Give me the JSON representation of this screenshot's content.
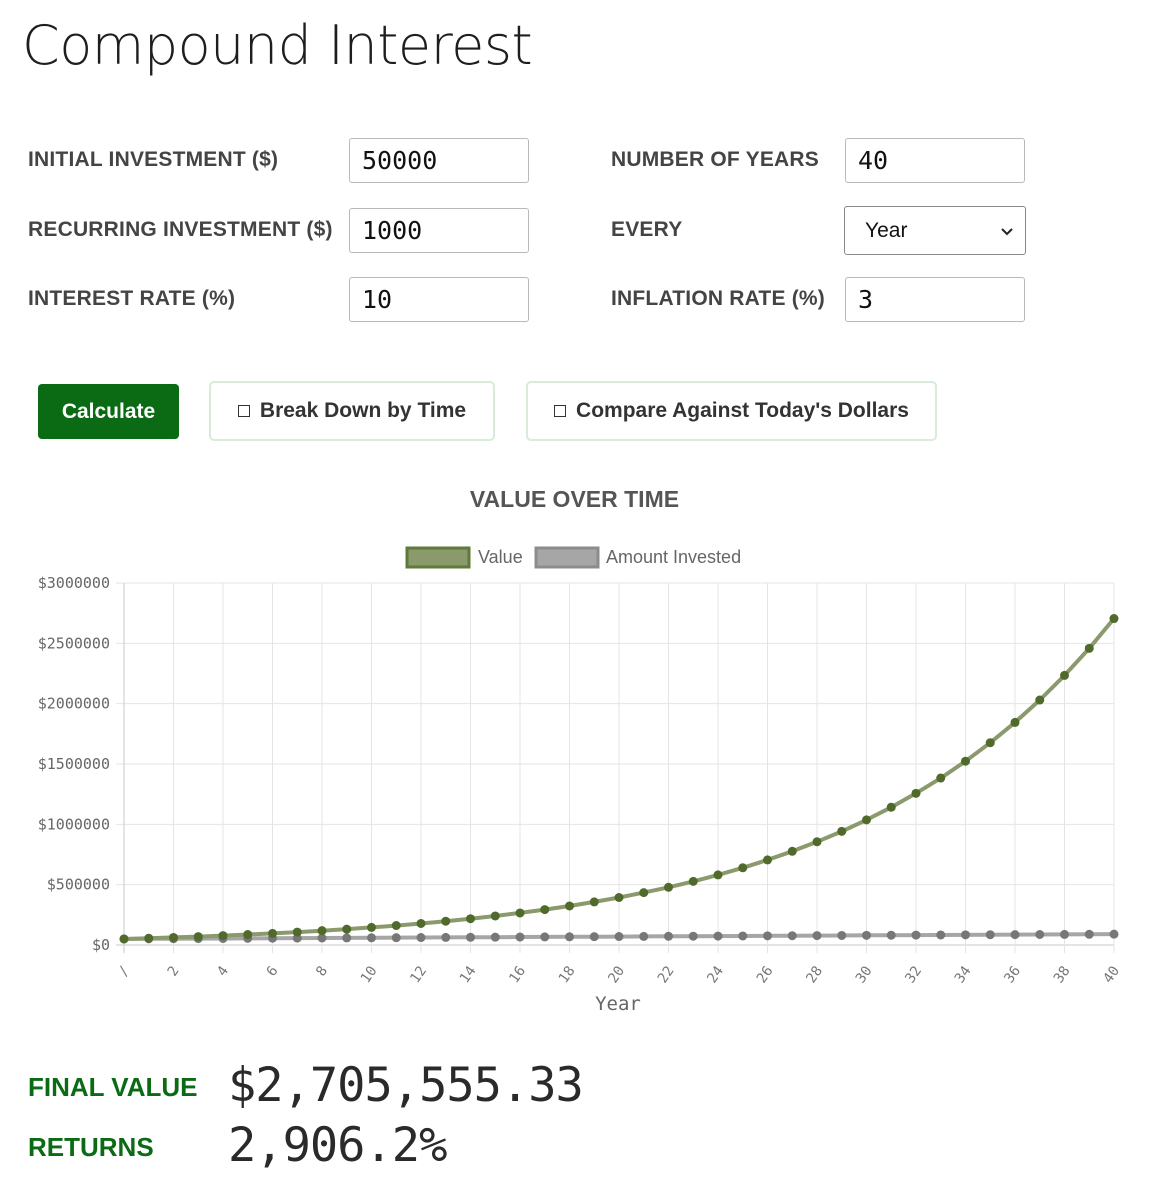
{
  "page": {
    "title": "Compound Interest"
  },
  "form": {
    "initial_investment": {
      "label": "INITIAL INVESTMENT ($)",
      "value": "50000"
    },
    "recurring_investment": {
      "label": "RECURRING INVESTMENT ($)",
      "value": "1000"
    },
    "interest_rate": {
      "label": "INTEREST RATE (%)",
      "value": "10"
    },
    "number_of_years": {
      "label": "NUMBER OF YEARS",
      "value": "40"
    },
    "every": {
      "label": "EVERY",
      "value": "Year"
    },
    "inflation_rate": {
      "label": "INFLATION RATE (%)",
      "value": "3"
    }
  },
  "buttons": {
    "calculate": "Calculate",
    "break_down": "Break Down by Time",
    "compare": "Compare Against Today's Dollars"
  },
  "colors": {
    "brand_green": "#0a6b14",
    "value_line": "#8a9a6c",
    "value_point": "#4f6a2a",
    "invested_line": "#a6a6a6",
    "invested_point": "#777777"
  },
  "chart_data": {
    "type": "line",
    "title": "VALUE OVER TIME",
    "xlabel": "Year",
    "ylabel": "",
    "x": [
      0,
      1,
      2,
      3,
      4,
      5,
      6,
      7,
      8,
      9,
      10,
      11,
      12,
      13,
      14,
      15,
      16,
      17,
      18,
      19,
      20,
      21,
      22,
      23,
      24,
      25,
      26,
      27,
      28,
      29,
      30,
      31,
      32,
      33,
      34,
      35,
      36,
      37,
      38,
      39,
      40
    ],
    "x_tick_labels": [
      "/",
      "2",
      "4",
      "6",
      "8",
      "10",
      "12",
      "14",
      "16",
      "18",
      "20",
      "22",
      "24",
      "26",
      "28",
      "30",
      "32",
      "34",
      "36",
      "38",
      "40"
    ],
    "y_tick_labels": [
      "$0",
      "$500000",
      "$1000000",
      "$1500000",
      "$2000000",
      "$2500000",
      "$3000000"
    ],
    "ylim": [
      0,
      3000000
    ],
    "xlim": [
      0,
      40
    ],
    "grid": true,
    "legend": "top-center",
    "series": [
      {
        "name": "Value",
        "values": [
          50000,
          56000,
          62600,
          69860,
          77846,
          86631,
          96294,
          106923,
          118615,
          131477,
          145625,
          161187,
          178306,
          197136,
          217850,
          240635,
          265699,
          293269,
          323596,
          356955,
          393651,
          434016,
          478418,
          527260,
          580986,
          640084,
          705093,
          776602,
          855262,
          941789,
          1036968,
          1141665,
          1256831,
          1383514,
          1522866,
          1676152,
          1844767,
          2030244,
          2234268,
          2458695,
          2705555
        ]
      },
      {
        "name": "Amount Invested",
        "values": [
          50000,
          51000,
          52000,
          53000,
          54000,
          55000,
          56000,
          57000,
          58000,
          59000,
          60000,
          61000,
          62000,
          63000,
          64000,
          65000,
          66000,
          67000,
          68000,
          69000,
          70000,
          71000,
          72000,
          73000,
          74000,
          75000,
          76000,
          77000,
          78000,
          79000,
          80000,
          81000,
          82000,
          83000,
          84000,
          85000,
          86000,
          87000,
          88000,
          89000,
          90000
        ]
      }
    ]
  },
  "results": {
    "final_value_label": "FINAL VALUE",
    "final_value": "$2,705,555.33",
    "returns_label": "RETURNS",
    "returns": "2,906.2%"
  }
}
